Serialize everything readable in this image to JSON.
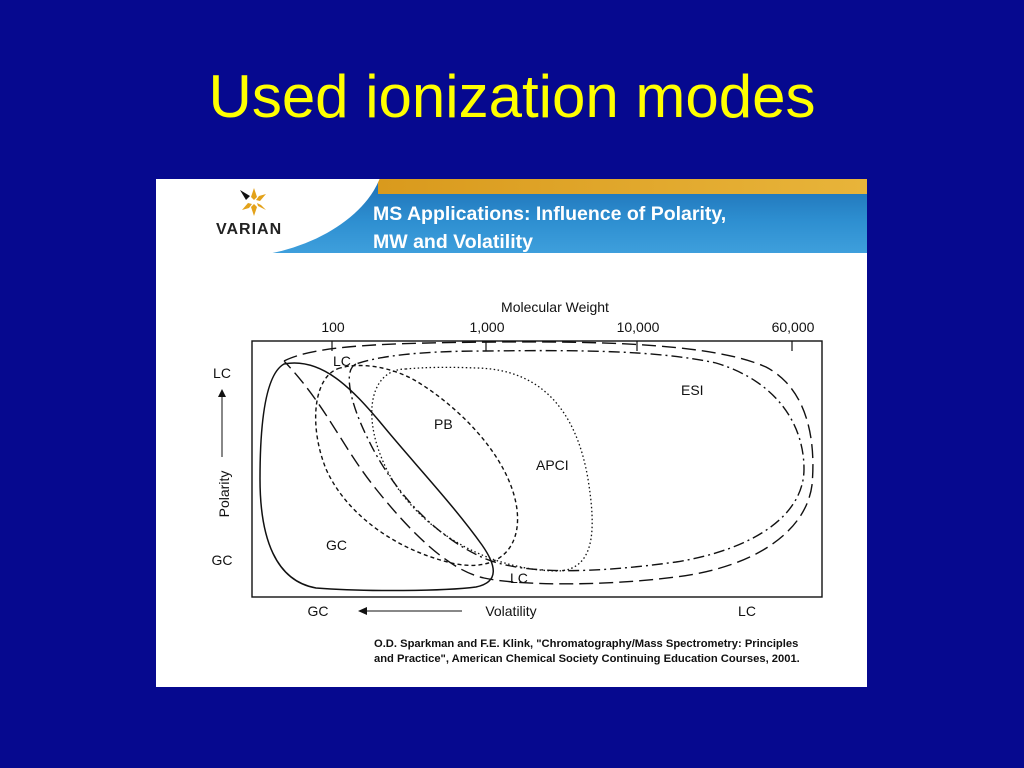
{
  "slide": {
    "title": "Used ionization modes"
  },
  "figure": {
    "logo_text": "VARIAN",
    "banner_title_line1": "MS Applications:  Influence of Polarity,",
    "banner_title_line2": "MW and Volatility",
    "top_axis": {
      "label": "Molecular Weight",
      "ticks": [
        "100",
        "1,000",
        "10,000",
        "60,000"
      ]
    },
    "left_axis": {
      "label": "Polarity",
      "top_label": "LC",
      "bottom_label": "GC"
    },
    "bottom_axis": {
      "label": "Volatility",
      "left_label": "GC",
      "right_label": "LC"
    },
    "regions": {
      "lc_top": "LC",
      "esi": "ESI",
      "pb": "PB",
      "apci": "APCI",
      "gc": "GC",
      "lc_bottom": "LC"
    },
    "citation_line1": "O.D. Sparkman and F.E. Klink, \"Chromatography/Mass Spectrometry: Principles",
    "citation_line2": "and Practice\", American Chemical Society Continuing Education Courses, 2001.",
    "colors": {
      "slide_background": "#06098f",
      "title_text": "#ffff00",
      "banner_blue": "#2d8ed0",
      "banner_gold": "#e0a82e"
    }
  }
}
